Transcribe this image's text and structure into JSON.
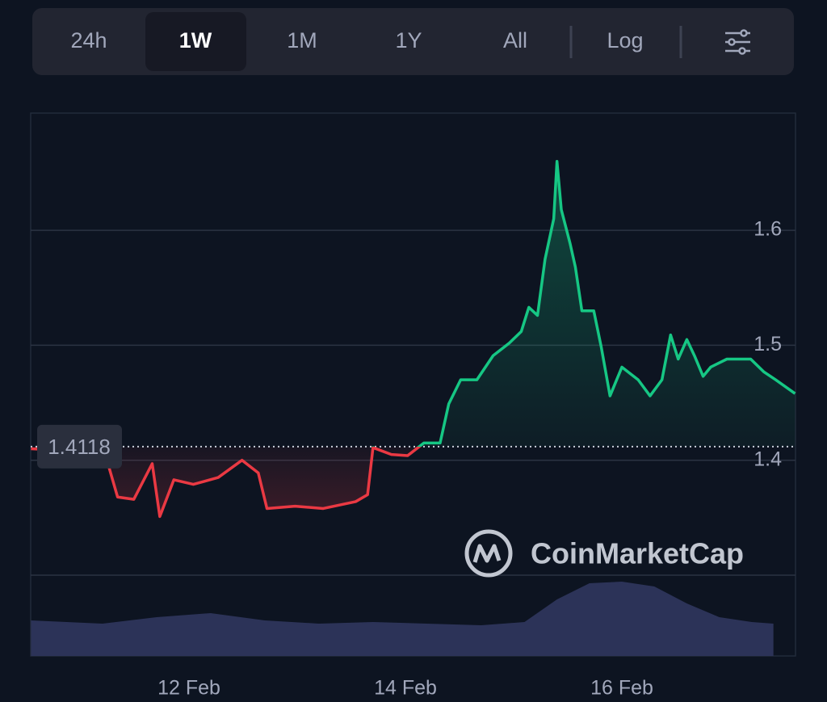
{
  "toolbar": {
    "buttons": [
      "24h",
      "1W",
      "1M",
      "1Y",
      "All",
      "Log"
    ],
    "selected": 1
  },
  "chart_data": {
    "type": "line",
    "watermark": "CoinMarketCap",
    "reference": 1.4118,
    "xlim": [
      10.537,
      17.604
    ],
    "xticks": [
      {
        "value": 12,
        "label": "12 Feb"
      },
      {
        "value": 14,
        "label": "14 Feb"
      },
      {
        "value": 16,
        "label": "16 Feb"
      }
    ],
    "ylim": [
      1.3,
      1.702
    ],
    "yticks": [
      1.4,
      1.5,
      1.6
    ],
    "y2lim": [
      0,
      100
    ],
    "grid": true,
    "up_color": "#16c784",
    "down_color": "#ea3943",
    "series": [
      {
        "color": "#16c784",
        "x": [
          10.54,
          11.22,
          11.34,
          11.49,
          11.66,
          11.73,
          11.86,
          12.04,
          12.27,
          12.49,
          12.64,
          12.72,
          12.98,
          13.24,
          13.54,
          13.65,
          13.7,
          13.87,
          14.02,
          14.17,
          14.32,
          14.4,
          14.51,
          14.66,
          14.81,
          14.96,
          15.07,
          15.14,
          15.22,
          15.29,
          15.37,
          15.4,
          15.44,
          15.52,
          15.57,
          15.63,
          15.74,
          15.81,
          15.89,
          16.0,
          16.15,
          16.26,
          16.37,
          16.45,
          16.52,
          16.6,
          16.67,
          16.75,
          16.82,
          16.97,
          17.19,
          17.31,
          17.42,
          17.6
        ],
        "values": [
          1.41,
          1.407,
          1.368,
          1.366,
          1.397,
          1.351,
          1.383,
          1.379,
          1.385,
          1.4,
          1.389,
          1.358,
          1.36,
          1.358,
          1.364,
          1.37,
          1.411,
          1.405,
          1.404,
          1.415,
          1.415,
          1.449,
          1.47,
          1.47,
          1.491,
          1.502,
          1.512,
          1.533,
          1.526,
          1.575,
          1.61,
          1.66,
          1.618,
          1.589,
          1.568,
          1.53,
          1.53,
          1.498,
          1.456,
          1.481,
          1.47,
          1.456,
          1.47,
          1.509,
          1.488,
          1.505,
          1.491,
          1.473,
          1.481,
          1.488,
          1.488,
          1.477,
          1.47,
          1.458
        ]
      },
      {
        "color": "#2c3358",
        "axis": "y2",
        "x": [
          10.54,
          11.2,
          11.7,
          12.2,
          12.7,
          13.2,
          13.7,
          14.2,
          14.7,
          15.1,
          15.4,
          15.7,
          16.0,
          16.3,
          16.6,
          16.9,
          17.2,
          17.4
        ],
        "values": [
          44,
          40,
          48,
          53,
          44,
          40,
          42,
          40,
          38,
          42,
          70,
          90,
          92,
          86,
          65,
          48,
          42,
          40
        ]
      }
    ]
  }
}
